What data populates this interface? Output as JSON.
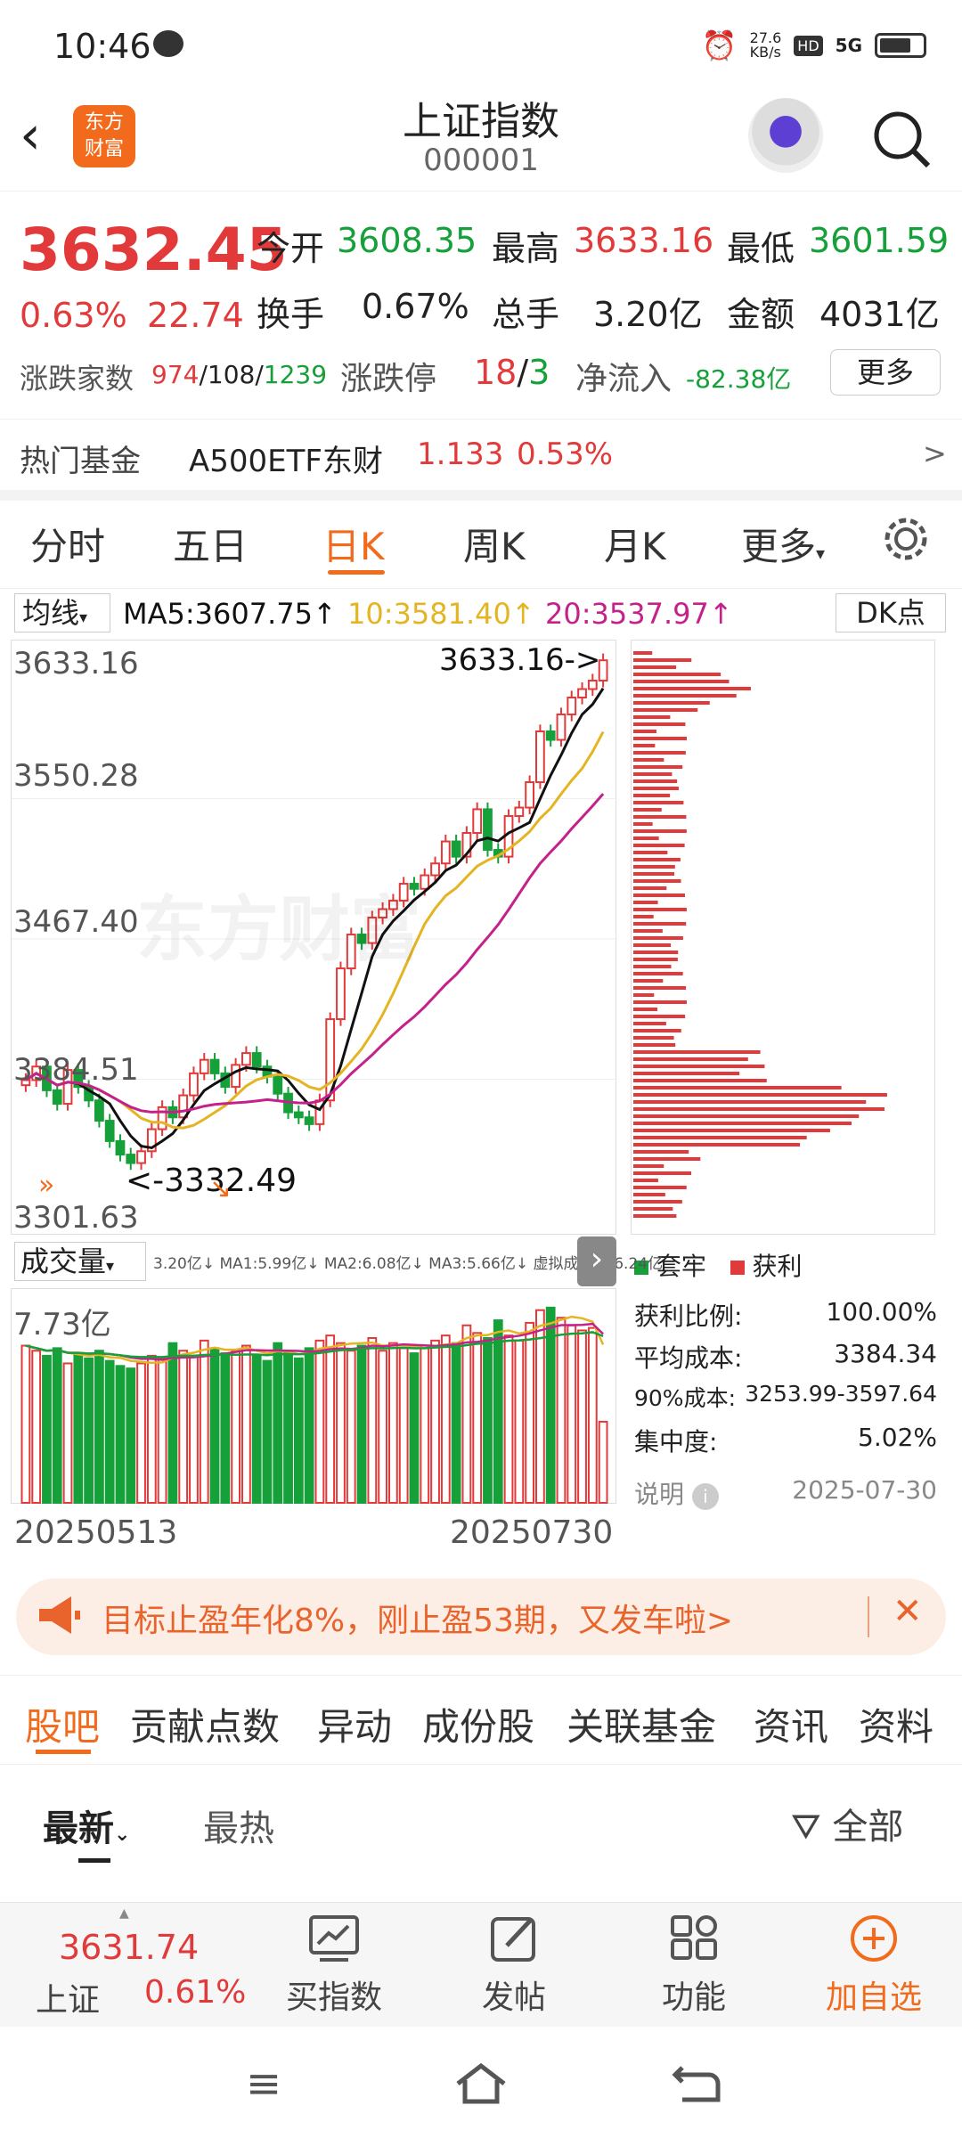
{
  "status_bar": {
    "time": "10:46",
    "speed": "27.6\nKB/s",
    "signal": "5G"
  },
  "header": {
    "logo_text": "东方\n财富",
    "title": "上证指数",
    "code": "000001"
  },
  "quote": {
    "price": "3632.45",
    "change_pct": "0.63%",
    "change": "22.74",
    "open_label": "今开",
    "open": "3608.35",
    "high_label": "最高",
    "high": "3633.16",
    "low_label": "最低",
    "low": "3601.59",
    "turnover_label": "换手",
    "turnover": "0.67%",
    "volume_label": "总手",
    "volume": "3.20亿",
    "amount_label": "金额",
    "amount": "4031亿",
    "breadth_label": "涨跌家数",
    "up": "974",
    "flat": "108",
    "down": "1239",
    "limit_label": "涨跌停",
    "limit_up": "18",
    "limit_down": "3",
    "netflow_label": "净流入",
    "netflow": "-82.38亿",
    "more_button": "更多"
  },
  "hot_fund": {
    "label": "热门基金",
    "name": "A500ETF东财",
    "price": "1.133",
    "pct": "0.53%",
    "arrow": ">"
  },
  "chart_tabs": {
    "items": [
      "分时",
      "五日",
      "日K",
      "周K",
      "月K",
      "更多"
    ],
    "active": "日K"
  },
  "ma_bar": {
    "selector": "均线",
    "ma5": "MA5:3607.75",
    "ma10": "10:3581.40",
    "ma20": "20:3537.97",
    "dk": "DK点"
  },
  "price_axis": {
    "top": "3633.16",
    "l2": "3550.28",
    "l3": "3467.40",
    "l4": "3384.51",
    "bottom": "3301.63",
    "high_marker": "3633.16->",
    "low_marker": "<-3332.49"
  },
  "watermark": "东方财富",
  "volume_panel": {
    "selector": "成交量",
    "legend": "3.20亿↓ MA1:5.99亿↓ MA2:6.08亿↓ MA3:5.66亿↓ 虚拟成交量:6.24亿",
    "max": "7.73亿",
    "start_date": "20250513",
    "end_date": "20250730"
  },
  "chip": {
    "legend_trapped": "套牢",
    "legend_profit": "获利",
    "rows": [
      {
        "label": "获利比例:",
        "value": "100.00%"
      },
      {
        "label": "平均成本:",
        "value": "3384.34"
      },
      {
        "label": "90%成本:",
        "value": "3253.99-3597.64"
      },
      {
        "label": "集中度:",
        "value": "5.02%"
      }
    ],
    "note": "说明",
    "date": "2025-07-30"
  },
  "banner": {
    "text": "目标止盈年化8%，刚止盈53期，又发车啦>",
    "close": "✕"
  },
  "section_tabs": {
    "items": [
      "股吧",
      "贡献点数",
      "异动",
      "成份股",
      "关联基金",
      "资讯",
      "资料"
    ]
  },
  "feed": {
    "latest": "最新",
    "hot": "最热",
    "filter": "全部"
  },
  "footer": {
    "index_price": "3631.74",
    "index_name": "上证",
    "index_pct": "0.61%",
    "buy": "买指数",
    "post": "发帖",
    "func": "功能",
    "add": "加自选"
  },
  "colors": {
    "up": "#e23a3a",
    "down": "#15a03a",
    "accent": "#f26b1d",
    "ma5": "#111111",
    "ma10": "#e5b422",
    "ma20": "#c4228a"
  },
  "chart_data": {
    "type": "candlestick",
    "x_start": "20250513",
    "x_end": "20250730",
    "ylim": [
      3301.63,
      3633.16
    ],
    "closes": [
      3384,
      3392,
      3378,
      3370,
      3390,
      3380,
      3372,
      3360,
      3348,
      3340,
      3335,
      3342,
      3355,
      3368,
      3362,
      3375,
      3388,
      3396,
      3388,
      3380,
      3393,
      3400,
      3392,
      3386,
      3376,
      3365,
      3362,
      3358,
      3372,
      3420,
      3450,
      3470,
      3465,
      3480,
      3485,
      3490,
      3500,
      3497,
      3505,
      3512,
      3525,
      3516,
      3530,
      3544,
      3520,
      3516,
      3540,
      3545,
      3560,
      3590,
      3585,
      3600,
      3610,
      3615,
      3620,
      3632
    ],
    "volumes": [
      6.2,
      6.0,
      5.8,
      6.1,
      5.5,
      5.9,
      5.7,
      6.0,
      5.6,
      5.4,
      5.3,
      5.5,
      5.8,
      5.7,
      6.3,
      6.0,
      5.8,
      6.4,
      6.1,
      5.9,
      6.0,
      6.2,
      5.8,
      5.6,
      6.3,
      5.9,
      5.7,
      6.1,
      6.4,
      6.6,
      6.3,
      6.0,
      6.2,
      6.5,
      6.0,
      6.3,
      6.1,
      5.9,
      6.2,
      6.4,
      6.6,
      6.3,
      7.0,
      6.7,
      6.5,
      7.2,
      6.6,
      6.4,
      7.1,
      7.6,
      7.7,
      7.3,
      7.0,
      6.8,
      6.9,
      3.2
    ]
  }
}
